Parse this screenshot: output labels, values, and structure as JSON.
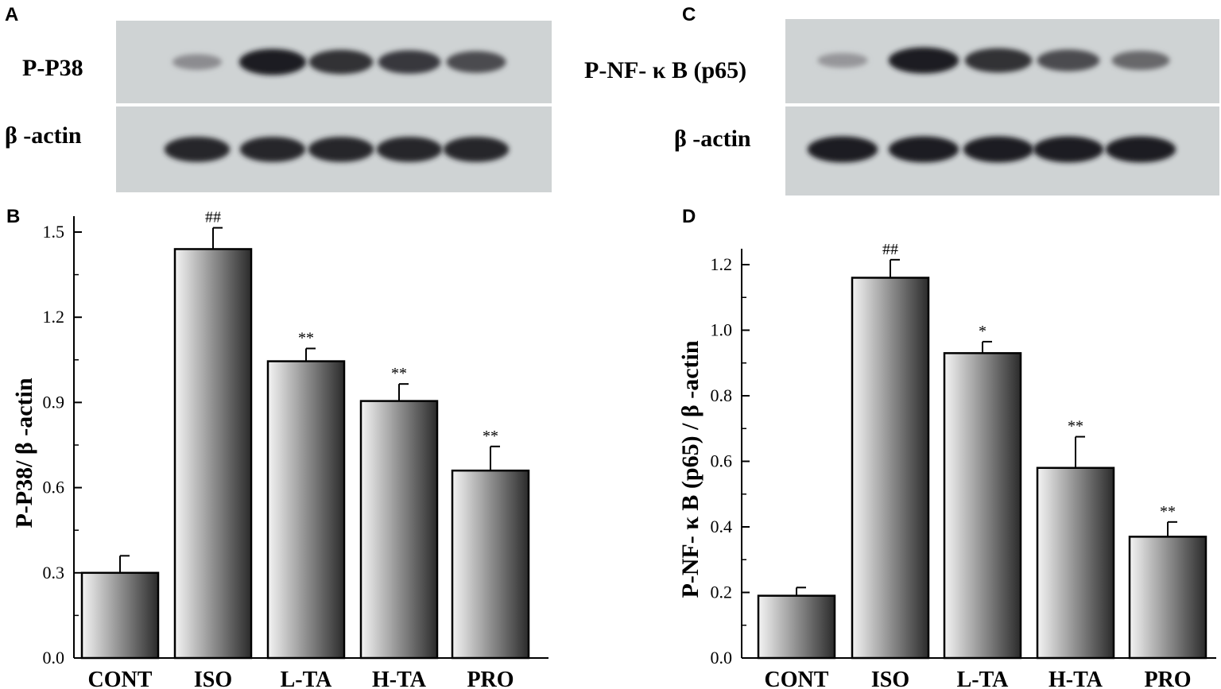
{
  "panels": {
    "a": "A",
    "b": "B",
    "c": "C",
    "d": "D"
  },
  "blots": [
    {
      "id": "a",
      "target_label": "P-P38",
      "control_label": "β -actin",
      "target_band_intensity": [
        0.35,
        0.95,
        0.85,
        0.8,
        0.7
      ],
      "control_band_intensity": [
        0.9,
        0.9,
        0.9,
        0.9,
        0.9
      ],
      "membrane_color": "#cfd3d4"
    },
    {
      "id": "c",
      "target_label": "P-NF- κ B (p65)",
      "control_label": "β -actin",
      "target_band_intensity": [
        0.3,
        0.95,
        0.85,
        0.7,
        0.55
      ],
      "control_band_intensity": [
        0.95,
        0.95,
        0.95,
        0.95,
        0.95
      ],
      "membrane_color": "#cfd3d4"
    }
  ],
  "chart_data": [
    {
      "id": "b",
      "type": "bar",
      "categories": [
        "CONT",
        "ISO",
        "L-TA",
        "H-TA",
        "PRO"
      ],
      "values": [
        0.3,
        1.44,
        1.045,
        0.905,
        0.66
      ],
      "errors": [
        0.06,
        0.075,
        0.045,
        0.06,
        0.085
      ],
      "annotations": [
        "",
        "##",
        "**",
        "**",
        "**"
      ],
      "ylabel": "P-P38/ β -actin",
      "ylim": [
        0,
        1.5
      ],
      "y_ticks": [
        "0.0",
        "0.3",
        "0.6",
        "0.9",
        "1.2",
        "1.5"
      ],
      "xlabel": "",
      "bar_gradient": [
        "#f4f4f4",
        "#2b2b2b"
      ]
    },
    {
      "id": "d",
      "type": "bar",
      "categories": [
        "CONT",
        "ISO",
        "L-TA",
        "H-TA",
        "PRO"
      ],
      "values": [
        0.19,
        1.16,
        0.93,
        0.58,
        0.37
      ],
      "errors": [
        0.025,
        0.055,
        0.035,
        0.095,
        0.045
      ],
      "annotations": [
        "",
        "##",
        "*",
        "**",
        "**"
      ],
      "ylabel": "P-NF- κ B (p65) / β -actin",
      "ylim": [
        0,
        1.2
      ],
      "y_ticks": [
        "0.0",
        "0.2",
        "0.4",
        "0.6",
        "0.8",
        "1.0",
        "1.2"
      ],
      "xlabel": "",
      "bar_gradient": [
        "#f4f4f4",
        "#2b2b2b"
      ]
    }
  ]
}
